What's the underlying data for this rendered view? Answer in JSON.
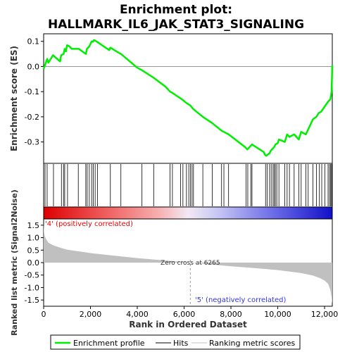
{
  "chart_data": {
    "type": "line",
    "title": "Enrichment plot:\nHALLMARK_IL6_JAK_STAT3_SIGNALING",
    "title_lines": [
      "Enrichment plot:",
      "HALLMARK_IL6_JAK_STAT3_SIGNALING"
    ],
    "es_panel": {
      "ylabel": "Enrichment score (ES)",
      "ylim": [
        -0.385,
        0.13
      ],
      "yticks": [
        0.1,
        0.0,
        -0.1,
        -0.2,
        -0.3
      ],
      "ytick_labels": [
        "0.1",
        "0.0",
        "-0.1",
        "-0.2",
        "-0.3"
      ],
      "series_color": "#00ee00",
      "x": [
        0,
        150,
        200,
        400,
        700,
        750,
        850,
        900,
        950,
        1000,
        1100,
        1200,
        1500,
        1800,
        1850,
        1950,
        2000,
        2050,
        2100,
        2150,
        2250,
        2800,
        2850,
        3200,
        3300,
        4000,
        4200,
        4700,
        5200,
        5400,
        5500,
        5900,
        6100,
        6265,
        6400,
        6800,
        7200,
        7600,
        7700,
        7900,
        8600,
        8700,
        8800,
        8900,
        9400,
        9450,
        9500,
        9650,
        9700,
        9800,
        9850,
        9900,
        10000,
        10050,
        10300,
        10400,
        10500,
        10700,
        10900,
        11000,
        11200,
        11300,
        11500,
        11650,
        11750,
        11850,
        12000,
        12150,
        12250,
        12300,
        12330
      ],
      "y": [
        -0.01,
        0.03,
        0.015,
        0.045,
        0.02,
        0.045,
        0.05,
        0.07,
        0.06,
        0.085,
        0.08,
        0.07,
        0.07,
        0.05,
        0.07,
        0.08,
        0.09,
        0.1,
        0.098,
        0.105,
        0.1,
        0.065,
        0.075,
        0.055,
        0.05,
        -0.005,
        -0.015,
        -0.045,
        -0.08,
        -0.1,
        -0.105,
        -0.13,
        -0.145,
        -0.155,
        -0.17,
        -0.2,
        -0.225,
        -0.255,
        -0.26,
        -0.27,
        -0.32,
        -0.33,
        -0.32,
        -0.31,
        -0.34,
        -0.35,
        -0.355,
        -0.345,
        -0.335,
        -0.325,
        -0.32,
        -0.31,
        -0.305,
        -0.29,
        -0.3,
        -0.27,
        -0.28,
        -0.27,
        -0.29,
        -0.26,
        -0.27,
        -0.25,
        -0.21,
        -0.2,
        -0.185,
        -0.18,
        -0.16,
        -0.14,
        -0.13,
        -0.1,
        0.005
      ]
    },
    "hits": [
      60,
      150,
      420,
      760,
      850,
      900,
      1020,
      1480,
      1800,
      1860,
      1950,
      2050,
      2120,
      2200,
      2300,
      2850,
      3300,
      4200,
      4700,
      5400,
      5500,
      5850,
      5950,
      6100,
      6200,
      6270,
      6340,
      6400,
      6800,
      7200,
      7600,
      7700,
      7900,
      8650,
      8720,
      8850,
      8900,
      9480,
      9550,
      9650,
      9720,
      9800,
      9850,
      9900,
      9960,
      10050,
      10300,
      10400,
      10500,
      10700,
      10900,
      11000,
      11200,
      11300,
      11500,
      11650,
      11780,
      11880,
      12010,
      12150,
      12210,
      12260,
      12300
    ],
    "metric_panel": {
      "ylabel": "Ranked list metric (Signal2Noise)",
      "ylim": [
        -1.75,
        1.75
      ],
      "yticks": [
        1.5,
        1.0,
        0.5,
        0.0,
        -0.5,
        -1.0,
        -1.5
      ],
      "ytick_labels": [
        "1.5",
        "1.0",
        "0.5",
        "0.0",
        "-0.5",
        "-1.0",
        "-1.5"
      ],
      "x": [
        0,
        20,
        50,
        100,
        200,
        400,
        700,
        1000,
        2000,
        3000,
        4000,
        5000,
        6265,
        7000,
        8000,
        9000,
        10000,
        11000,
        11500,
        11800,
        12000,
        12150,
        12250,
        12300,
        12330
      ],
      "y": [
        1.6,
        1.2,
        1.05,
        0.95,
        0.8,
        0.7,
        0.6,
        0.52,
        0.38,
        0.28,
        0.18,
        0.1,
        0.0,
        -0.06,
        -0.15,
        -0.22,
        -0.3,
        -0.42,
        -0.52,
        -0.62,
        -0.72,
        -0.85,
        -1.1,
        -1.4,
        -1.65
      ],
      "fill_color": "#c0c0c0",
      "zero_cross_label": "Zero cross at 6265",
      "zero_cross": 6265,
      "pos_label": "'4' (positively correlated)",
      "neg_label": "'5' (negatively correlated)",
      "pos_label_color": "#ee0000",
      "neg_label_color": "#3333dd"
    },
    "xlabel": "Rank in Ordered Dataset",
    "xlim": [
      0,
      12330
    ],
    "xticks": [
      0,
      2000,
      4000,
      6000,
      8000,
      10000,
      12000
    ],
    "xtick_labels": [
      "0",
      "2,000",
      "4,000",
      "6,000",
      "8,000",
      "10,000",
      "12,000"
    ],
    "legend": [
      {
        "label": "Enrichment profile",
        "color": "#00ee00",
        "style": "thick"
      },
      {
        "label": "Hits",
        "color": "#000000",
        "style": "thin"
      },
      {
        "label": "Ranking metric scores",
        "color": "#c0c0c0",
        "style": "thin"
      }
    ]
  }
}
